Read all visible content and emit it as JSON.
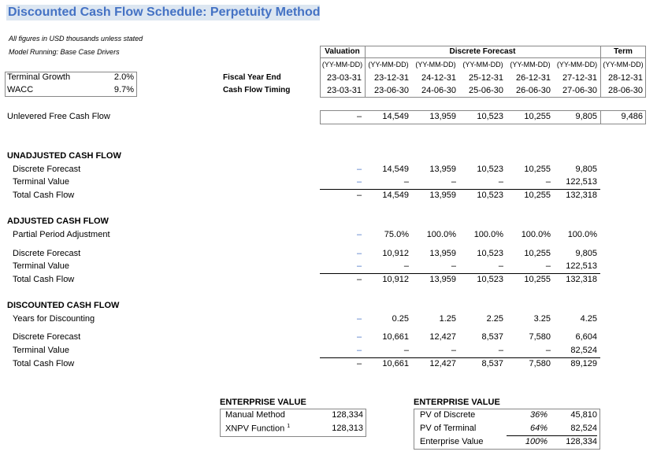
{
  "title": "Discounted Cash Flow Schedule: Perpetuity Method",
  "notes": [
    "All figures in USD thousands unless stated",
    "Model Running: Base Case Drivers"
  ],
  "assumptions": [
    {
      "label": "Terminal Growth",
      "value": "2.0%"
    },
    {
      "label": "WACC",
      "value": "9.7%"
    }
  ],
  "headers": {
    "valuation": "Valuation",
    "discrete": "Discrete Forecast",
    "term": "Term"
  },
  "date_format": "(YY-MM-DD)",
  "fiscal_year_end_label": "Fiscal Year End",
  "cash_flow_timing_label": "Cash Flow Timing",
  "fiscal_year_end": [
    "23-03-31",
    "23-12-31",
    "24-12-31",
    "25-12-31",
    "26-12-31",
    "27-12-31",
    "28-12-31"
  ],
  "cash_flow_timing": [
    "23-03-31",
    "23-06-30",
    "24-06-30",
    "25-06-30",
    "26-06-30",
    "27-06-30",
    "28-06-30"
  ],
  "ufcf": {
    "label": "Unlevered Free Cash Flow",
    "values": [
      "–",
      "14,549",
      "13,959",
      "10,523",
      "10,255",
      "9,805",
      "9,486"
    ]
  },
  "unadjusted": {
    "heading": "UNADJUSTED CASH FLOW",
    "discrete": {
      "label": "Discrete Forecast",
      "values": [
        "–",
        "14,549",
        "13,959",
        "10,523",
        "10,255",
        "9,805"
      ]
    },
    "terminal": {
      "label": "Terminal Value",
      "values": [
        "–",
        "–",
        "–",
        "–",
        "–",
        "122,513"
      ]
    },
    "total": {
      "label": "Total Cash Flow",
      "values": [
        "–",
        "14,549",
        "13,959",
        "10,523",
        "10,255",
        "132,318"
      ]
    }
  },
  "adjusted": {
    "heading": "ADJUSTED CASH FLOW",
    "partial": {
      "label": "Partial Period Adjustment",
      "values": [
        "–",
        "75.0%",
        "100.0%",
        "100.0%",
        "100.0%",
        "100.0%"
      ]
    },
    "discrete": {
      "label": "Discrete Forecast",
      "values": [
        "–",
        "10,912",
        "13,959",
        "10,523",
        "10,255",
        "9,805"
      ]
    },
    "terminal": {
      "label": "Terminal Value",
      "values": [
        "–",
        "–",
        "–",
        "–",
        "–",
        "122,513"
      ]
    },
    "total": {
      "label": "Total Cash Flow",
      "values": [
        "–",
        "10,912",
        "13,959",
        "10,523",
        "10,255",
        "132,318"
      ]
    }
  },
  "discounted": {
    "heading": "DISCOUNTED CASH FLOW",
    "years": {
      "label": "Years for Discounting",
      "values": [
        "–",
        "0.25",
        "1.25",
        "2.25",
        "3.25",
        "4.25"
      ]
    },
    "discrete": {
      "label": "Discrete Forecast",
      "values": [
        "–",
        "10,661",
        "12,427",
        "8,537",
        "7,580",
        "6,604"
      ]
    },
    "terminal": {
      "label": "Terminal Value",
      "values": [
        "–",
        "–",
        "–",
        "–",
        "–",
        "82,524"
      ]
    },
    "total": {
      "label": "Total Cash Flow",
      "values": [
        "–",
        "10,661",
        "12,427",
        "8,537",
        "7,580",
        "89,129"
      ]
    }
  },
  "ev_left": {
    "heading": "ENTERPRISE VALUE",
    "rows": [
      {
        "label": "Manual Method",
        "value": "128,334"
      },
      {
        "label": "XNPV Function",
        "sup": "1",
        "value": "128,313"
      }
    ]
  },
  "ev_right": {
    "heading": "ENTERPRISE VALUE",
    "rows": [
      {
        "label": "PV of Discrete",
        "pct": "36%",
        "value": "45,810"
      },
      {
        "label": "PV of Terminal",
        "pct": "64%",
        "value": "82,524"
      },
      {
        "label": "Enterprise Value",
        "pct": "100%",
        "value": "128,334"
      }
    ]
  },
  "colors": {
    "accent": "#4472c4",
    "title_bg": "#dce6f1"
  }
}
